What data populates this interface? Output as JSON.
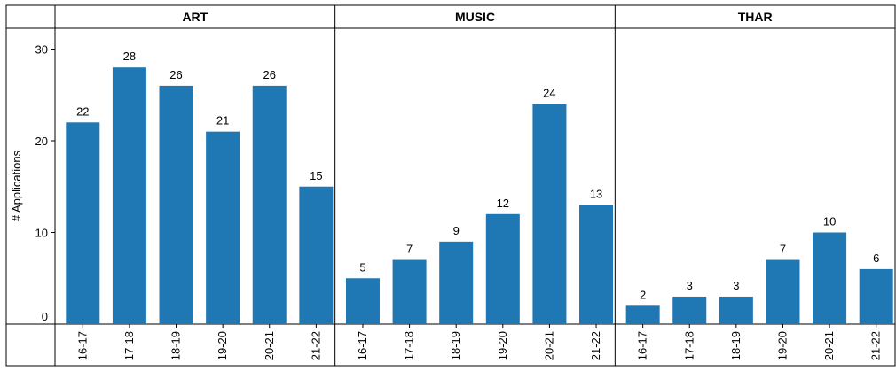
{
  "chart_data": {
    "type": "bar",
    "ylabel": "# Applications",
    "ylim": [
      0,
      32
    ],
    "yticks": [
      0,
      10,
      20,
      30
    ],
    "bar_color": "#1f77b4",
    "categories": [
      "16-17",
      "17-18",
      "18-19",
      "19-20",
      "20-21",
      "21-22"
    ],
    "panels": [
      {
        "title": "ART",
        "values": [
          22,
          28,
          26,
          21,
          26,
          15
        ]
      },
      {
        "title": "MUSIC",
        "values": [
          5,
          7,
          9,
          12,
          24,
          13
        ]
      },
      {
        "title": "THAR",
        "values": [
          2,
          3,
          3,
          7,
          10,
          6
        ]
      }
    ]
  }
}
